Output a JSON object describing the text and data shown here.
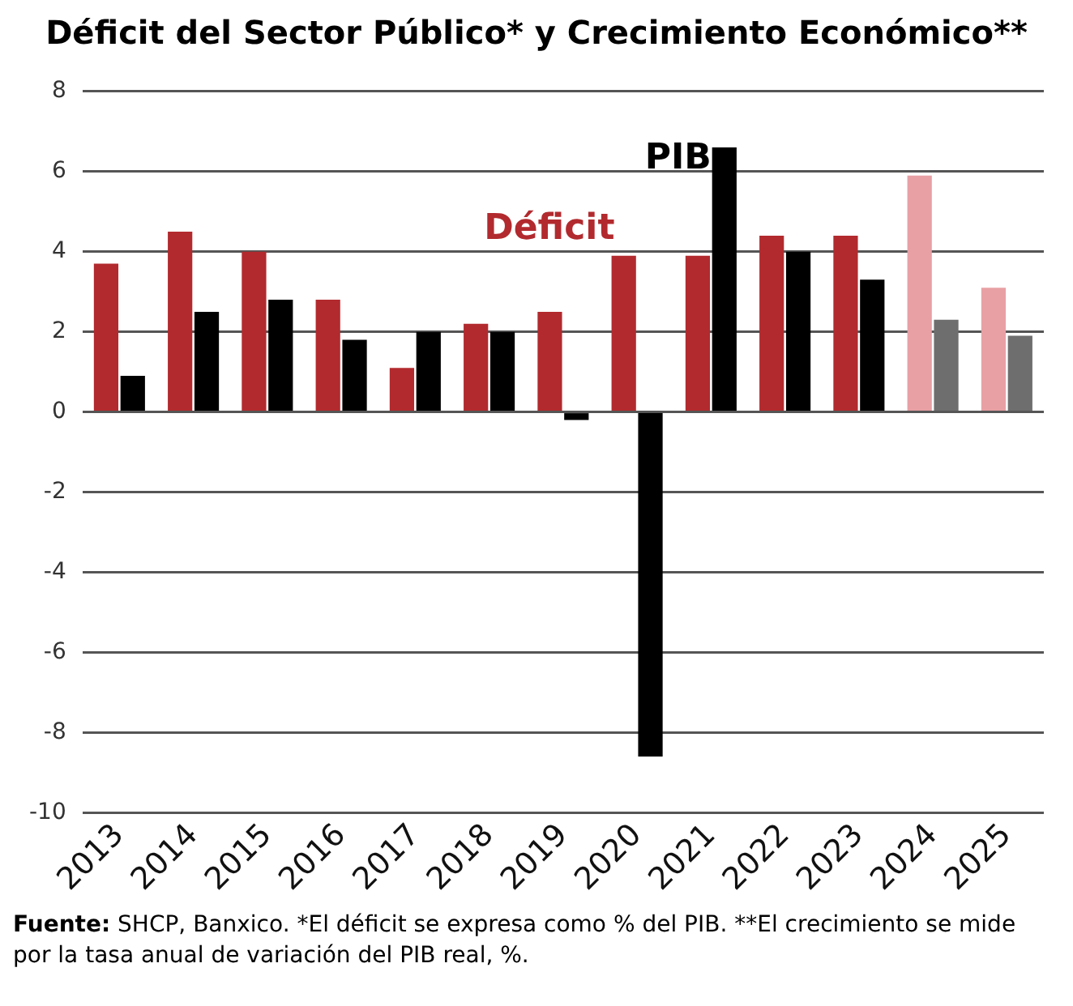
{
  "chart_data": {
    "type": "bar",
    "title": "Déficit del Sector Público* y Crecimiento Económico**",
    "categories": [
      "2013",
      "2014",
      "2015",
      "2016",
      "2017",
      "2018",
      "2019",
      "2020",
      "2021",
      "2022",
      "2023",
      "2024",
      "2025"
    ],
    "series": [
      {
        "name": "Déficit",
        "color": "#b22a2e",
        "colors": [
          "#b22a2e",
          "#b22a2e",
          "#b22a2e",
          "#b22a2e",
          "#b22a2e",
          "#b22a2e",
          "#b22a2e",
          "#b22a2e",
          "#b22a2e",
          "#b22a2e",
          "#b22a2e",
          "#e8a0a4",
          "#e8a0a4"
        ],
        "values": [
          3.7,
          4.5,
          4.0,
          2.8,
          1.1,
          2.2,
          2.5,
          3.9,
          3.9,
          4.4,
          4.4,
          5.9,
          3.1
        ]
      },
      {
        "name": "PIB",
        "color": "#000000",
        "colors": [
          "#000000",
          "#000000",
          "#000000",
          "#000000",
          "#000000",
          "#000000",
          "#000000",
          "#000000",
          "#000000",
          "#000000",
          "#000000",
          "#6e6e6e",
          "#6e6e6e"
        ],
        "values": [
          0.9,
          2.5,
          2.8,
          1.8,
          2.0,
          2.0,
          -0.2,
          -8.6,
          6.6,
          4.0,
          3.3,
          2.3,
          1.9
        ]
      }
    ],
    "ylim": [
      -10,
      8
    ],
    "yticks": [
      -10,
      -8,
      -6,
      -4,
      -2,
      0,
      2,
      4,
      6,
      8
    ],
    "grid": "y",
    "legend": false,
    "annotations": [
      "Fuente: SHCP, Banxico. *El déficit se expresa como % del PIB. **El crecimiento se mide por la tasa anual de variación del PIB real, %."
    ]
  }
}
